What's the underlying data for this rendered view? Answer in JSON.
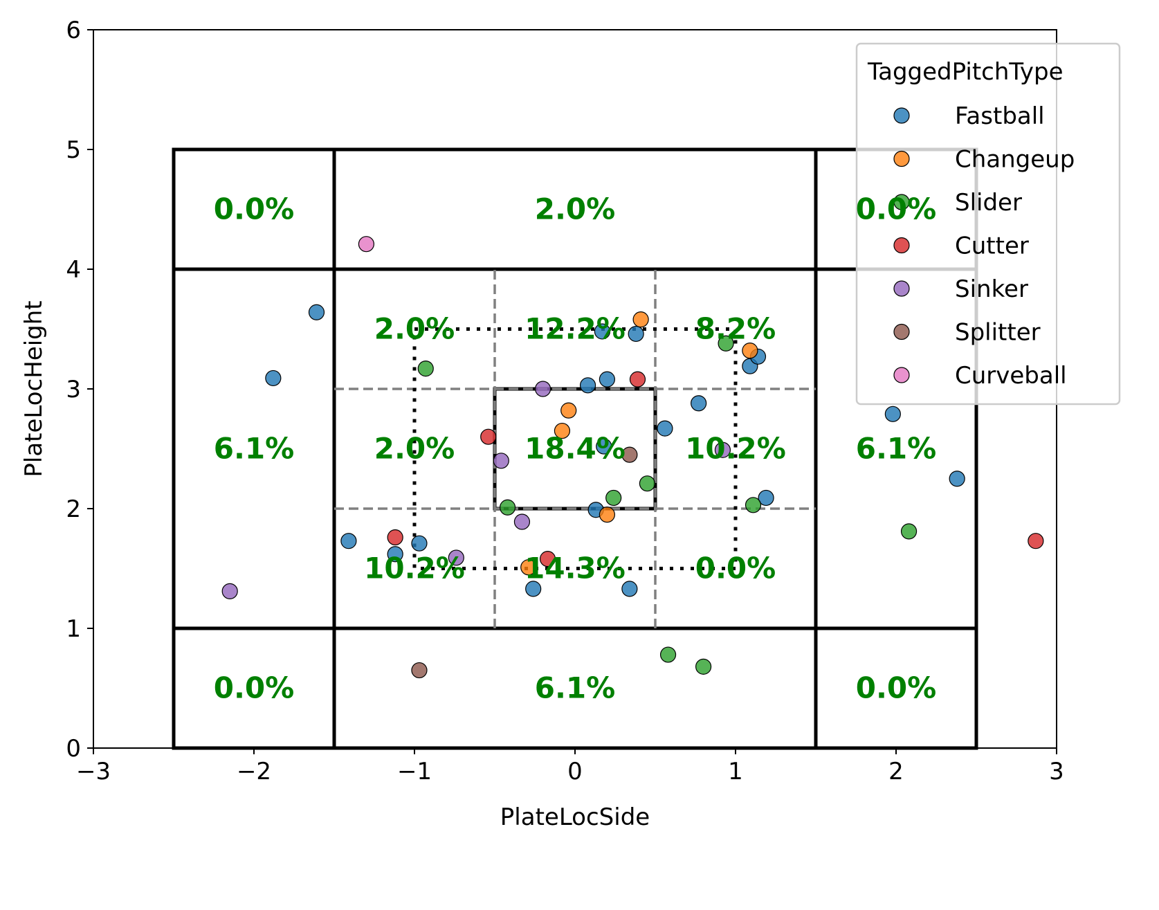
{
  "chart_data": {
    "type": "scatter",
    "xlabel": "PlateLocSide",
    "ylabel": "PlateLocHeight",
    "xlim": [
      -3,
      3
    ],
    "ylim": [
      0,
      6
    ],
    "x_ticks": [
      -3,
      -2,
      -1,
      0,
      1,
      2,
      3
    ],
    "x_tick_labels": [
      "−3",
      "−2",
      "−1",
      "0",
      "1",
      "2",
      "3"
    ],
    "y_ticks": [
      0,
      1,
      2,
      3,
      4,
      5,
      6
    ],
    "y_tick_labels": [
      "0",
      "1",
      "2",
      "3",
      "4",
      "5",
      "6"
    ],
    "grid": false,
    "legend": {
      "title": "TaggedPitchType",
      "placement": "upper right"
    },
    "series": [
      {
        "name": "Fastball",
        "color": "#1f77b4",
        "points": [
          [
            -1.61,
            3.64
          ],
          [
            -1.88,
            3.09
          ],
          [
            -1.41,
            1.73
          ],
          [
            -1.12,
            1.62
          ],
          [
            -0.97,
            1.71
          ],
          [
            0.17,
            3.48
          ],
          [
            0.38,
            3.46
          ],
          [
            0.08,
            3.03
          ],
          [
            0.2,
            3.08
          ],
          [
            0.18,
            2.52
          ],
          [
            0.13,
            1.99
          ],
          [
            -0.26,
            1.33
          ],
          [
            0.34,
            1.33
          ],
          [
            0.56,
            2.67
          ],
          [
            0.77,
            2.88
          ],
          [
            1.09,
            3.19
          ],
          [
            1.14,
            3.27
          ],
          [
            1.19,
            2.09
          ],
          [
            1.98,
            2.79
          ],
          [
            2.38,
            2.25
          ]
        ]
      },
      {
        "name": "Changeup",
        "color": "#ff7f0e",
        "points": [
          [
            0.41,
            3.58
          ],
          [
            1.09,
            3.32
          ],
          [
            -0.04,
            2.82
          ],
          [
            -0.08,
            2.65
          ],
          [
            0.2,
            1.95
          ],
          [
            -0.29,
            1.51
          ]
        ]
      },
      {
        "name": "Slider",
        "color": "#2ca02c",
        "points": [
          [
            -0.93,
            3.17
          ],
          [
            0.94,
            3.38
          ],
          [
            0.45,
            2.21
          ],
          [
            0.24,
            2.09
          ],
          [
            -0.42,
            2.01
          ],
          [
            1.11,
            2.03
          ],
          [
            2.08,
            1.81
          ],
          [
            0.58,
            0.78
          ],
          [
            0.8,
            0.68
          ]
        ]
      },
      {
        "name": "Cutter",
        "color": "#d62728",
        "points": [
          [
            -0.54,
            2.6
          ],
          [
            0.39,
            3.08
          ],
          [
            -1.12,
            1.76
          ],
          [
            -0.17,
            1.58
          ],
          [
            2.87,
            1.73
          ]
        ]
      },
      {
        "name": "Sinker",
        "color": "#9467bd",
        "points": [
          [
            -0.2,
            3.0
          ],
          [
            -0.46,
            2.4
          ],
          [
            -0.33,
            1.89
          ],
          [
            -0.74,
            1.59
          ],
          [
            0.92,
            2.49
          ],
          [
            -2.15,
            1.31
          ]
        ]
      },
      {
        "name": "Splitter",
        "color": "#8c564b",
        "points": [
          [
            0.34,
            2.45
          ],
          [
            -0.97,
            0.65
          ]
        ]
      },
      {
        "name": "Curveball",
        "color": "#e377c2",
        "points": [
          [
            -1.3,
            4.21
          ]
        ]
      }
    ],
    "zone_labels": [
      {
        "x": -2.0,
        "y": 4.5,
        "text": "0.0%"
      },
      {
        "x": 0.0,
        "y": 4.5,
        "text": "2.0%"
      },
      {
        "x": 2.0,
        "y": 4.5,
        "text": "0.0%"
      },
      {
        "x": -2.0,
        "y": 2.5,
        "text": "6.1%"
      },
      {
        "x": 2.0,
        "y": 2.5,
        "text": "6.1%"
      },
      {
        "x": -2.0,
        "y": 0.5,
        "text": "0.0%"
      },
      {
        "x": 0.0,
        "y": 0.5,
        "text": "6.1%"
      },
      {
        "x": 2.0,
        "y": 0.5,
        "text": "0.0%"
      },
      {
        "x": -1.0,
        "y": 3.5,
        "text": "2.0%"
      },
      {
        "x": 0.0,
        "y": 3.5,
        "text": "12.2%"
      },
      {
        "x": 1.0,
        "y": 3.5,
        "text": "8.2%"
      },
      {
        "x": -1.0,
        "y": 2.5,
        "text": "2.0%"
      },
      {
        "x": 0.0,
        "y": 2.5,
        "text": "18.4%"
      },
      {
        "x": 1.0,
        "y": 2.5,
        "text": "10.2%"
      },
      {
        "x": -1.0,
        "y": 1.5,
        "text": "10.2%"
      },
      {
        "x": 0.0,
        "y": 1.5,
        "text": "14.3%"
      },
      {
        "x": 1.0,
        "y": 1.5,
        "text": "0.0%"
      }
    ],
    "zone_lines": {
      "outer_solid_rects": [
        [
          -2.5,
          4,
          -1.5,
          5
        ],
        [
          -1.5,
          4,
          1.5,
          5
        ],
        [
          1.5,
          4,
          2.5,
          5
        ],
        [
          -2.5,
          1,
          -1.5,
          4
        ],
        [
          1.5,
          1,
          2.5,
          4
        ],
        [
          -2.5,
          0,
          -1.5,
          1
        ],
        [
          -1.5,
          0,
          1.5,
          1
        ],
        [
          1.5,
          0,
          2.5,
          1
        ]
      ],
      "heart_rect": [
        -0.5,
        2,
        0.5,
        3
      ],
      "dotted_rect": [
        -1,
        1.5,
        1,
        3.5
      ],
      "dashed_vertical_x": [
        -0.5,
        0.5
      ],
      "dashed_vertical_range": [
        1,
        4
      ],
      "dashed_horizontal_y": [
        2,
        3
      ],
      "dashed_horizontal_range": [
        -1.5,
        1.5
      ]
    }
  }
}
